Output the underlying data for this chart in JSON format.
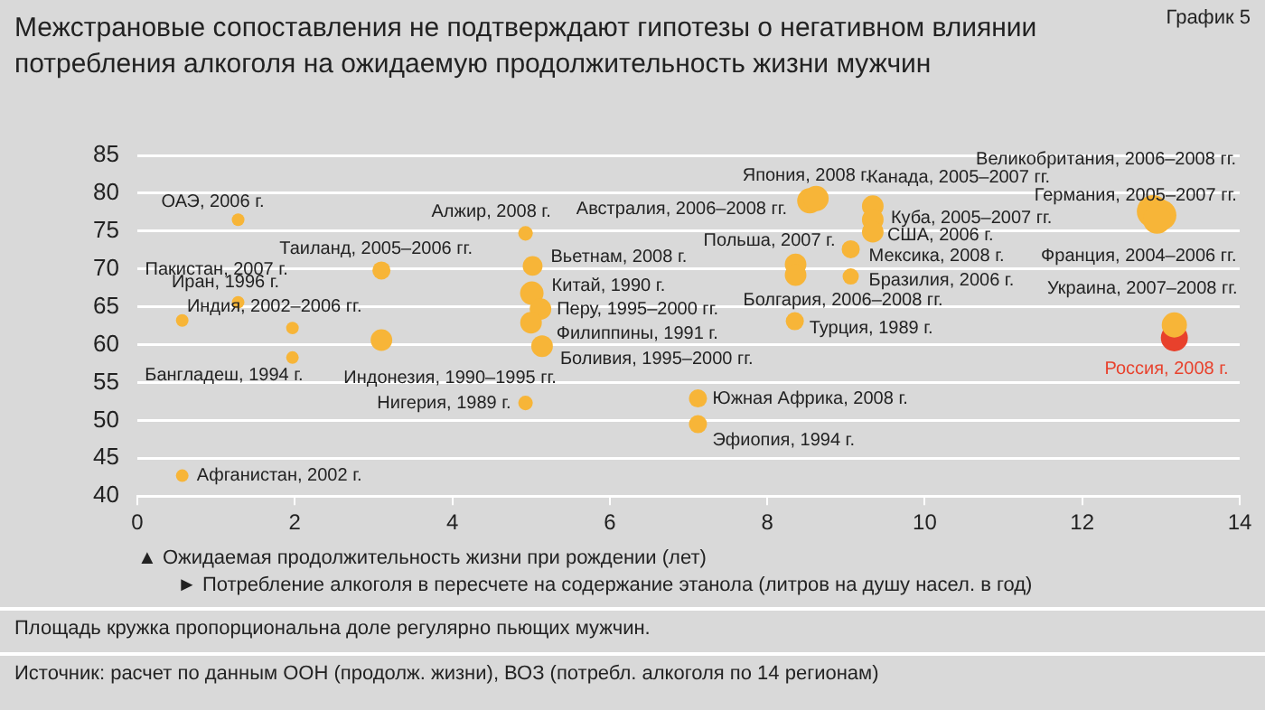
{
  "chart_data": {
    "type": "bubble",
    "title": "Межстрановые сопоставления не подтверждают гипотезы о негативном влиянии потребления алкоголя на ожидаемую продолжительность жизни мужчин",
    "xlabel": "► Потребление алкоголя в пересчете на содержание этанола (литров на душу насел. в год)",
    "xlim": [
      0,
      14
    ],
    "xticks": [
      0,
      2,
      4,
      6,
      8,
      10,
      12,
      14
    ],
    "ylim": [
      40,
      85
    ],
    "yticks": [
      40,
      45,
      50,
      55,
      60,
      65,
      70,
      75,
      80,
      85
    ],
    "grid": "y",
    "legend": false,
    "series": [
      {
        "color": "#f7b538",
        "x": [
          0.57,
          1.28,
          1.28,
          1.97,
          1.97,
          0.57,
          3.1,
          3.1,
          8.54,
          8.62,
          4.93,
          5.02,
          5.01,
          5.12,
          5.0,
          5.14,
          4.93,
          7.12,
          7.12,
          8.36,
          8.36,
          8.35,
          9.34,
          9.34,
          9.34,
          9.06,
          9.06,
          12.9,
          13.0,
          12.95,
          13.17
        ],
        "values": [
          63.2,
          76.5,
          65.6,
          62.2,
          58.3,
          42.7,
          69.8,
          60.6,
          79.0,
          79.3,
          74.7,
          70.4,
          66.8,
          64.7,
          62.9,
          59.8,
          52.3,
          52.9,
          49.5,
          70.6,
          69.2,
          63.1,
          78.3,
          76.5,
          74.9,
          72.6,
          69.0,
          77.6,
          77.1,
          76.5,
          62.6
        ],
        "sizes": [
          0.15,
          0.15,
          0.15,
          0.15,
          0.15,
          0.15,
          0.31,
          0.44,
          0.6,
          0.6,
          0.2,
          0.37,
          0.52,
          0.44,
          0.44,
          0.44,
          0.2,
          0.31,
          0.31,
          0.44,
          0.44,
          0.31,
          0.44,
          0.44,
          0.44,
          0.31,
          0.25,
          1,
          0.9,
          0.75,
          0.6
        ]
      },
      {
        "name": "Россия, 2008 г.",
        "color": "#e8412c",
        "x": [
          13.17
        ],
        "values": [
          60.9
        ],
        "sizes": [
          0.69
        ]
      }
    ],
    "annotations": [
      {
        "text": "Пакистан, 2007 г.",
        "x": 0.57,
        "y": 63.2
      },
      {
        "text": "ОАЭ, 2006 г.",
        "x": 1.28,
        "y": 76.5
      },
      {
        "text": "Иран, 1996 г.",
        "x": 1.28,
        "y": 65.6
      },
      {
        "text": "Индия, 2002–2006 гг.",
        "x": 1.97,
        "y": 62.2
      },
      {
        "text": "Бангладеш, 1994 г.",
        "x": 1.97,
        "y": 58.3
      },
      {
        "text": "Афганистан, 2002 г.",
        "x": 0.57,
        "y": 42.7
      },
      {
        "text": "Таиланд, 2005–2006 гг.",
        "x": 3.1,
        "y": 69.8
      },
      {
        "text": "Индонезия, 1990–1995 гг.",
        "x": 3.1,
        "y": 60.6
      },
      {
        "text": "Япония, 2008 г.",
        "x": 8.54,
        "y": 79.0
      },
      {
        "text": "Австралия, 2006–2008 гг.",
        "x": 8.62,
        "y": 79.3
      },
      {
        "text": "Алжир, 2008 г.",
        "x": 4.93,
        "y": 74.7
      },
      {
        "text": "Вьетнам, 2008 г.",
        "x": 5.02,
        "y": 70.4
      },
      {
        "text": "Китай, 1990 г.",
        "x": 5.01,
        "y": 66.8
      },
      {
        "text": "Перу, 1995–2000 гг.",
        "x": 5.12,
        "y": 64.7
      },
      {
        "text": "Филиппины, 1991 г.",
        "x": 5.0,
        "y": 62.9
      },
      {
        "text": "Боливия, 1995–2000 гг.",
        "x": 5.14,
        "y": 59.8
      },
      {
        "text": "Нигерия, 1989 г.",
        "x": 4.93,
        "y": 52.3
      },
      {
        "text": "Южная Африка, 2008 г.",
        "x": 7.12,
        "y": 52.9
      },
      {
        "text": "Эфиопия, 1994 г.",
        "x": 7.12,
        "y": 49.5
      },
      {
        "text": "Польша, 2007 г.",
        "x": 8.36,
        "y": 70.6
      },
      {
        "text": "Болгария, 2006–2008 гг.",
        "x": 8.36,
        "y": 69.2
      },
      {
        "text": "Турция, 1989 г.",
        "x": 8.35,
        "y": 63.1
      },
      {
        "text": "Канада, 2005–2007 гг.",
        "x": 9.34,
        "y": 78.3
      },
      {
        "text": "Куба, 2005–2007 гг.",
        "x": 9.34,
        "y": 76.5
      },
      {
        "text": "США, 2006 г.",
        "x": 9.34,
        "y": 74.9
      },
      {
        "text": "Мексика, 2008 г.",
        "x": 9.06,
        "y": 72.6
      },
      {
        "text": "Бразилия, 2006 г.",
        "x": 9.06,
        "y": 69.0
      },
      {
        "text": "Великобритания, 2006–2008 гг.",
        "x": 12.9,
        "y": 77.6
      },
      {
        "text": "Германия, 2005–2007 гг.",
        "x": 13.0,
        "y": 77.1
      },
      {
        "text": "Франция, 2004–2006 гг.",
        "x": 12.95,
        "y": 76.5
      },
      {
        "text": "Украина, 2007–2008 гг.",
        "x": 13.17,
        "y": 62.6
      },
      "График 5",
      "▲ Ожидаемая продолжительность жизни при рождении (лет)",
      "Площадь кружка пропорциональна доле регулярно пьющих мужчин.",
      "Источник: расчет по данным ООН (продолж. жизни), ВОЗ (потребл. алкоголя по 14 регионам)"
    ]
  }
}
